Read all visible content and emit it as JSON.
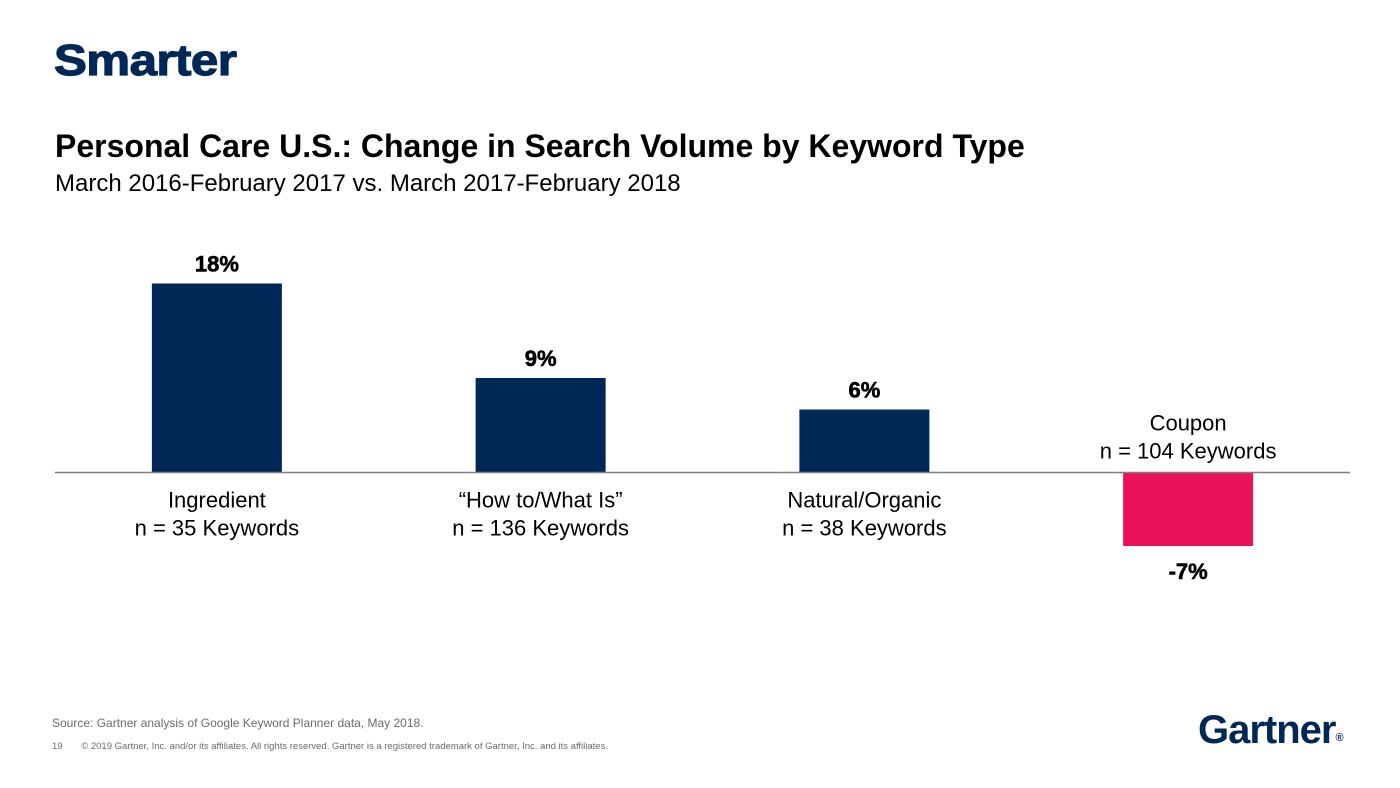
{
  "header": {
    "section_title": "Smarter",
    "title": "Personal Care U.S.: Change in Search Volume by Keyword Type",
    "subtitle": "March 2016-February 2017 vs. March 2017-February 2018"
  },
  "chart_data": {
    "type": "bar",
    "title": "Personal Care U.S.: Change in Search Volume by Keyword Type",
    "subtitle": "March 2016-February 2017 vs. March 2017-February 2018",
    "categories": [
      "Ingredient",
      "“How to/What Is”",
      "Natural/Organic",
      "Coupon"
    ],
    "category_notes": [
      "n = 35 Keywords",
      "n = 136 Keywords",
      "n = 38 Keywords",
      "n = 104 Keywords"
    ],
    "values": [
      18,
      9,
      6,
      -7
    ],
    "value_labels": [
      "18%",
      "9%",
      "6%",
      "-7%"
    ],
    "unit": "%",
    "colors": [
      "#002856",
      "#002856",
      "#002856",
      "#E9115A"
    ],
    "positive_color": "#002856",
    "negative_color": "#E9115A",
    "ylim": [
      -7.6,
      19.6
    ],
    "grid": false,
    "legend": "none",
    "axis_line_color": "#7f7f7f"
  },
  "footer": {
    "source": "Source: Gartner analysis of Google Keyword Planner data, May 2018.",
    "page_number": "19",
    "copyright": "© 2019 Gartner, Inc. and/or its affiliates. All rights reserved. Gartner is a registered trademark of Gartner, Inc. and its affiliates."
  },
  "logo": {
    "text": "Gartner",
    "mark": "®"
  }
}
